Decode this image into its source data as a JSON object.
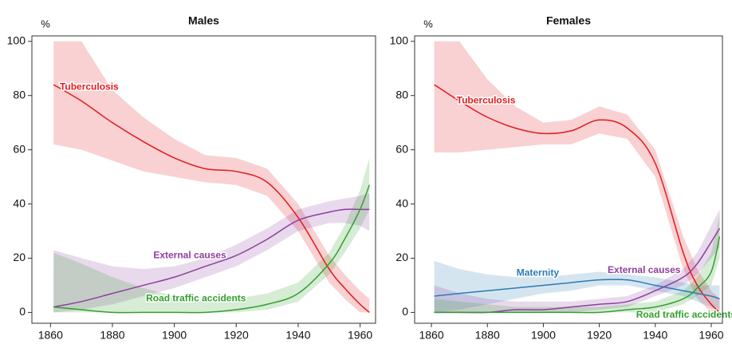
{
  "chart_data": [
    {
      "type": "line",
      "title": "Males",
      "y_label": "%",
      "x": [
        1861,
        1870,
        1880,
        1890,
        1900,
        1910,
        1920,
        1930,
        1940,
        1950,
        1955,
        1960,
        1963
      ],
      "xlim": [
        1854,
        1965
      ],
      "ylim": [
        -4,
        102
      ],
      "xticks": [
        1860,
        1880,
        1900,
        1920,
        1940,
        1960
      ],
      "yticks": [
        0,
        20,
        40,
        60,
        80,
        100
      ],
      "series": [
        {
          "name": "Tuberculosis",
          "color": "#e31a1c",
          "values": [
            84,
            78,
            70,
            63,
            57,
            53,
            52,
            48,
            35,
            16,
            9,
            3,
            0
          ],
          "lower": [
            62,
            60,
            56,
            52,
            50,
            48,
            47,
            43,
            30,
            11,
            5,
            0,
            0
          ],
          "upper": [
            100,
            100,
            82,
            72,
            64,
            58,
            57,
            53,
            40,
            21,
            14,
            8,
            5
          ]
        },
        {
          "name": "External causes",
          "color": "#8e3f9e",
          "values": [
            2,
            4,
            7,
            10,
            13,
            17,
            21,
            27,
            34,
            37,
            38,
            38,
            38
          ],
          "lower": [
            0,
            1,
            3,
            6,
            9,
            13,
            17,
            23,
            30,
            33,
            33,
            32,
            30
          ],
          "upper": [
            23,
            20,
            17,
            16,
            17,
            20,
            25,
            31,
            38,
            41,
            42,
            43,
            44
          ]
        },
        {
          "name": "Road traffic accidents",
          "color": "#33a02c",
          "values": [
            2,
            1,
            0,
            0,
            0,
            0,
            1,
            3,
            7,
            18,
            27,
            38,
            47
          ],
          "lower": [
            0,
            0,
            0,
            0,
            0,
            0,
            0,
            1,
            4,
            14,
            22,
            31,
            38
          ],
          "upper": [
            22,
            18,
            13,
            9,
            6,
            4,
            5,
            7,
            11,
            22,
            32,
            45,
            57
          ]
        }
      ]
    },
    {
      "type": "line",
      "title": "Females",
      "y_label": "%",
      "x": [
        1861,
        1870,
        1880,
        1890,
        1900,
        1910,
        1920,
        1930,
        1940,
        1950,
        1955,
        1960,
        1963
      ],
      "xlim": [
        1854,
        1964
      ],
      "ylim": [
        -4,
        102
      ],
      "xticks": [
        1860,
        1880,
        1900,
        1920,
        1940,
        1960
      ],
      "yticks": [
        0,
        20,
        40,
        60,
        80,
        100
      ],
      "series": [
        {
          "name": "Tuberculosis",
          "color": "#e31a1c",
          "values": [
            84,
            78,
            72,
            68,
            66,
            67,
            71,
            68,
            55,
            22,
            10,
            3,
            0
          ],
          "lower": [
            59,
            59,
            60,
            61,
            62,
            62,
            66,
            64,
            50,
            16,
            5,
            0,
            0
          ],
          "upper": [
            100,
            100,
            86,
            76,
            70,
            71,
            76,
            73,
            60,
            28,
            16,
            8,
            5
          ]
        },
        {
          "name": "Maternity",
          "color": "#2c7bb6",
          "values": [
            6,
            7,
            8,
            9,
            10,
            11,
            12,
            12,
            10,
            8,
            7,
            6,
            5
          ],
          "lower": [
            0,
            1,
            3,
            5,
            7,
            8,
            10,
            10,
            8,
            6,
            4,
            2,
            1
          ],
          "upper": [
            19,
            16,
            14,
            13,
            13,
            14,
            15,
            14,
            13,
            11,
            10,
            10,
            10
          ]
        },
        {
          "name": "External causes",
          "color": "#8e3f9e",
          "values": [
            0,
            0,
            0,
            1,
            1,
            2,
            3,
            4,
            8,
            13,
            18,
            26,
            31
          ],
          "lower": [
            0,
            0,
            0,
            0,
            0,
            0,
            1,
            2,
            6,
            10,
            14,
            20,
            24
          ],
          "upper": [
            10,
            7,
            5,
            4,
            4,
            4,
            5,
            6,
            10,
            16,
            22,
            32,
            38
          ]
        },
        {
          "name": "Road traffic accidents",
          "color": "#33a02c",
          "values": [
            0,
            0,
            0,
            0,
            0,
            0,
            0,
            1,
            2,
            5,
            9,
            15,
            28
          ],
          "lower": [
            0,
            0,
            0,
            0,
            0,
            0,
            0,
            0,
            0,
            3,
            6,
            10,
            20
          ],
          "upper": [
            5,
            4,
            3,
            2,
            2,
            2,
            2,
            3,
            4,
            8,
            13,
            22,
            36
          ]
        }
      ]
    }
  ]
}
